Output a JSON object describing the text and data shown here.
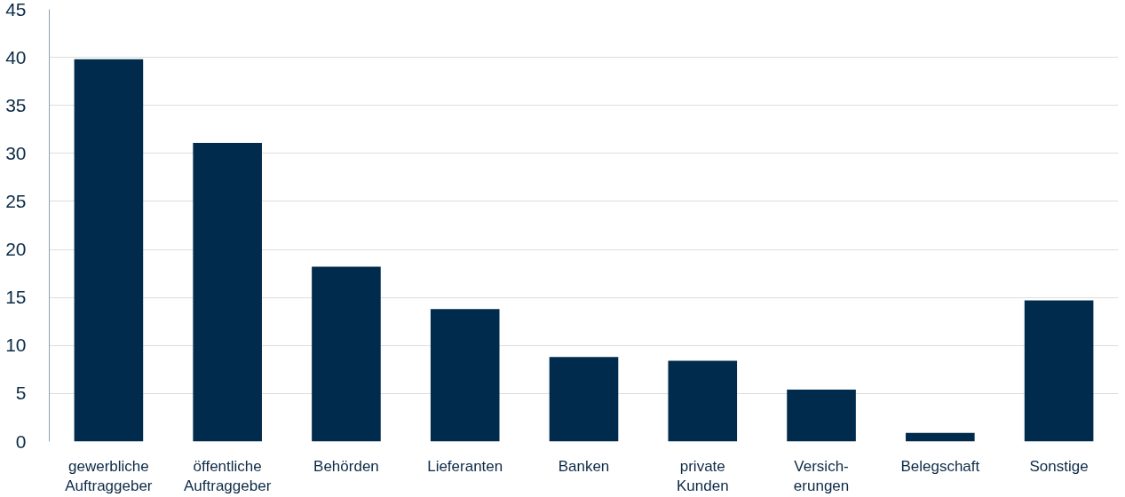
{
  "chart_data": {
    "type": "bar",
    "categories": [
      "gewerbliche\nAuftraggeber",
      "öffentliche\nAuftraggeber",
      "Behörden",
      "Lieferanten",
      "Banken",
      "private\nKunden",
      "Versich-\nerungen",
      "Belegschaft",
      "Sonstige"
    ],
    "values": [
      39.8,
      31.1,
      18.2,
      13.8,
      8.8,
      8.4,
      5.4,
      0.9,
      14.7
    ],
    "color": "#002b4c",
    "ylim": [
      0,
      45
    ],
    "yticks": [
      0,
      5,
      10,
      15,
      20,
      25,
      30,
      35,
      40,
      45
    ],
    "grid": "y"
  }
}
